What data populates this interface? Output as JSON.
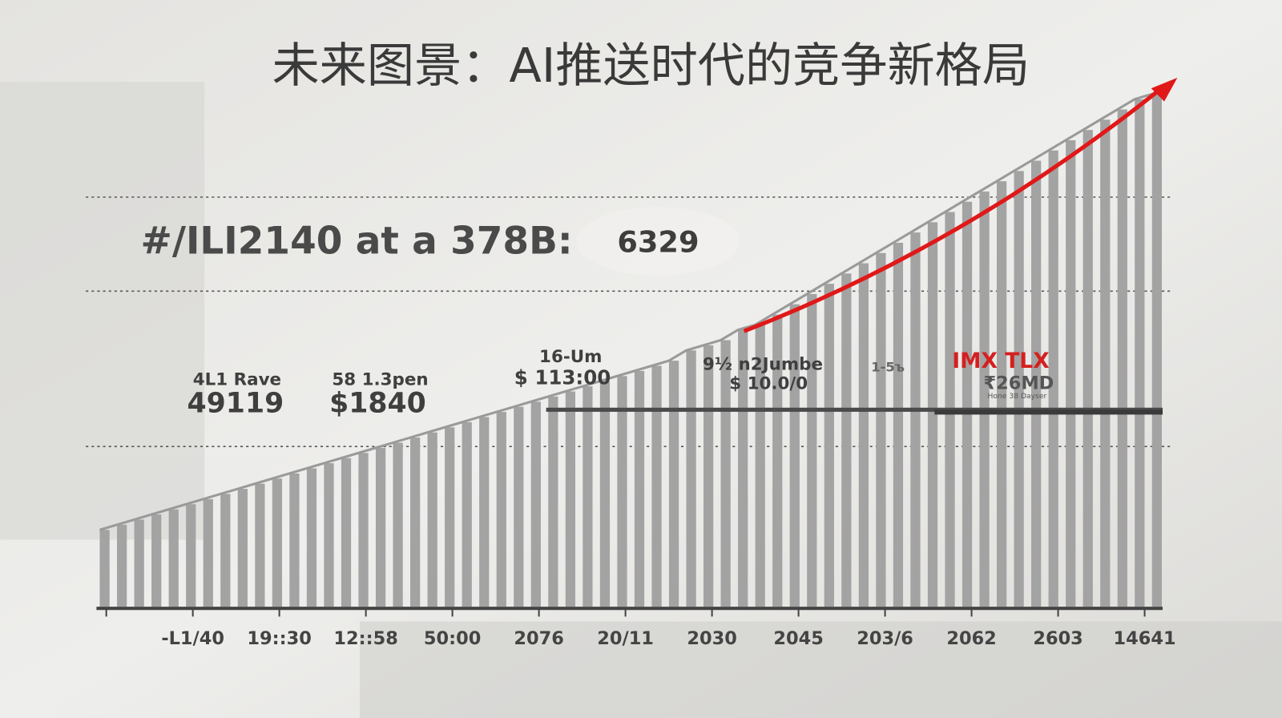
{
  "title": "未来图景：AI推送时代的竞争新格局",
  "chart_data": {
    "type": "bar",
    "color": "#a3a3a3",
    "values": [
      15,
      16,
      17,
      18,
      19,
      20,
      21,
      22,
      23,
      24,
      25,
      26,
      27,
      28,
      29,
      30,
      31,
      32,
      33,
      34,
      35,
      36,
      37,
      38,
      39,
      40,
      41,
      42,
      43,
      44,
      45,
      46,
      47,
      48,
      50,
      51,
      52,
      54,
      55,
      57,
      59,
      61,
      63,
      65,
      67,
      69,
      71,
      73,
      75,
      77,
      79,
      81,
      83,
      85,
      87,
      89,
      91,
      93,
      95,
      97,
      99,
      100
    ],
    "x_tick_labels": [
      null,
      "-L1/40",
      "19::30",
      "12::58",
      "50:00",
      "2076",
      "20/11",
      "2030",
      "2045",
      "203/6",
      "2062",
      "2603",
      "14641"
    ],
    "headline": "#/ILI2140 at a 378B:",
    "headline_value": "6329",
    "annotations": [
      {
        "lines": [
          "4L1 Rave",
          "49119"
        ]
      },
      {
        "lines": [
          "58 1.3pen",
          "$1840"
        ]
      },
      {
        "lines": [
          "16-Um",
          "$ 113:00"
        ]
      },
      {
        "lines": [
          "9½ n2Jumbe",
          "$ 10.0/0"
        ]
      },
      {
        "lines": [
          "1-5ъ"
        ]
      },
      {
        "lines": [
          "IMX TLX",
          "₹26MD",
          "Hone 38 Dayser"
        ]
      }
    ]
  }
}
